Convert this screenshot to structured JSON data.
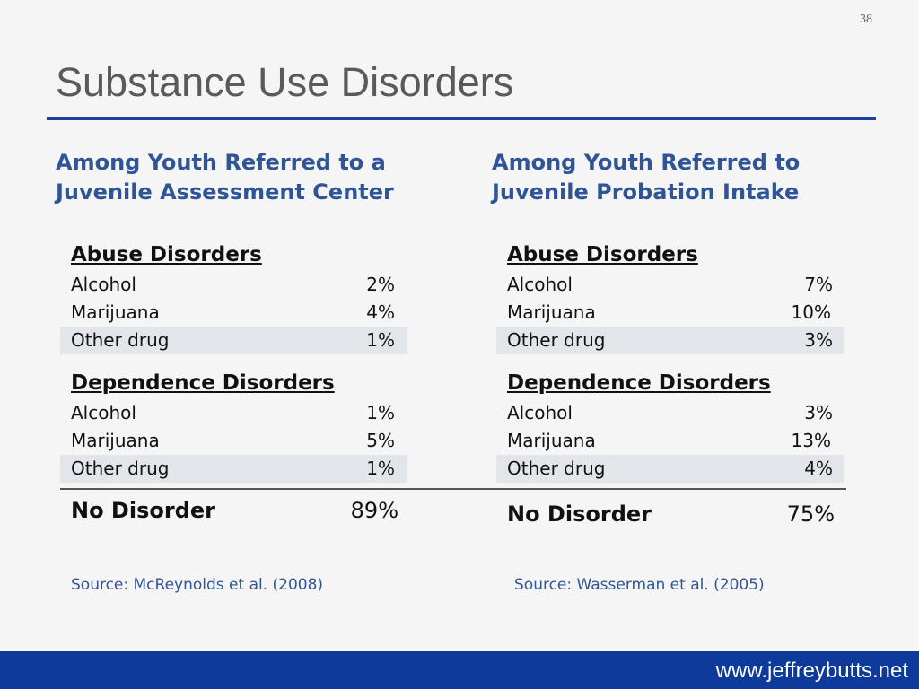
{
  "page_number": "38",
  "title": "Substance Use Disorders",
  "columns": [
    {
      "heading_lines": [
        "Among Youth Referred to a",
        "Juvenile Assessment Center"
      ],
      "abuse": {
        "label": "Abuse Disorders",
        "rows": [
          {
            "label": "Alcohol",
            "value": "2%"
          },
          {
            "label": "Marijuana",
            "value": "4%"
          },
          {
            "label": "Other drug",
            "value": "1%"
          }
        ]
      },
      "dependence": {
        "label": "Dependence Disorders",
        "rows": [
          {
            "label": "Alcohol",
            "value": "1%"
          },
          {
            "label": "Marijuana",
            "value": "5%"
          },
          {
            "label": "Other drug",
            "value": "1%"
          }
        ]
      },
      "no_disorder": {
        "label": "No Disorder",
        "value": "89%"
      },
      "source": "Source: McReynolds et al. (2008)"
    },
    {
      "heading_lines": [
        "Among Youth Referred to",
        "Juvenile Probation Intake"
      ],
      "abuse": {
        "label": "Abuse Disorders",
        "rows": [
          {
            "label": "Alcohol",
            "value": "7%"
          },
          {
            "label": "Marijuana",
            "value": "10%"
          },
          {
            "label": "Other drug",
            "value": "3%"
          }
        ]
      },
      "dependence": {
        "label": "Dependence Disorders",
        "rows": [
          {
            "label": "Alcohol",
            "value": "3%"
          },
          {
            "label": "Marijuana",
            "value": "13%"
          },
          {
            "label": "Other drug",
            "value": "4%"
          }
        ]
      },
      "no_disorder": {
        "label": "No Disorder",
        "value": "75%"
      },
      "source": "Source: Wasserman et al. (2005)"
    }
  ],
  "footer": {
    "url": "www.jeffreybutts.net"
  },
  "colors": {
    "accent": "#1f3f99",
    "heading_blue": "#2f5596",
    "footer_bar": "#0e3b9b",
    "row_shade": "#e2e5ea"
  }
}
